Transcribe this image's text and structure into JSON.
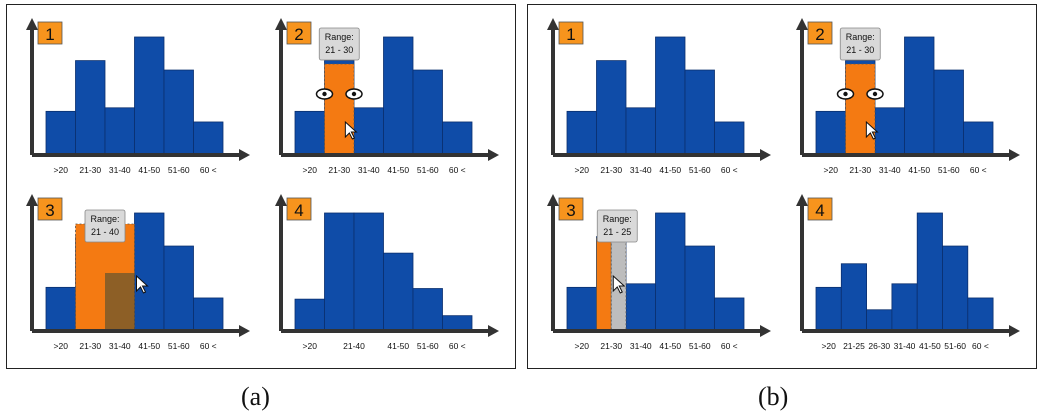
{
  "panels": [
    {
      "caption": "(a)",
      "steps": [
        {
          "number": "1",
          "bins": [
            {
              "label": ">20",
              "value": 37
            },
            {
              "label": "21-30",
              "value": 80
            },
            {
              "label": "31-40",
              "value": 40
            },
            {
              "label": "41-50",
              "value": 100
            },
            {
              "label": "51-60",
              "value": 72
            },
            {
              "label": "60 <",
              "value": 28
            }
          ]
        },
        {
          "number": "2",
          "bins": [
            {
              "label": ">20",
              "value": 37
            },
            {
              "label": "21-30",
              "value": 80
            },
            {
              "label": "31-40",
              "value": 40
            },
            {
              "label": "41-50",
              "value": 100
            },
            {
              "label": "51-60",
              "value": 72
            },
            {
              "label": "60 <",
              "value": 28
            }
          ],
          "tooltip_title": "Range:",
          "tooltip_range": "21 - 30",
          "highlight": [
            1,
            2
          ],
          "handles": true,
          "cursor": true
        },
        {
          "number": "3",
          "bins": [
            {
              "label": ">20",
              "value": 37
            },
            {
              "label": "21-30",
              "value": 80
            },
            {
              "label": "31-40",
              "value": 40
            },
            {
              "label": "41-50",
              "value": 100
            },
            {
              "label": "51-60",
              "value": 72
            },
            {
              "label": "60 <",
              "value": 28
            }
          ],
          "tooltip_title": "Range:",
          "tooltip_range": "21 - 40",
          "highlight": [
            1,
            3
          ],
          "overlay_bin": 2,
          "cursor": true
        },
        {
          "number": "4",
          "bins": [
            {
              "label": ">20",
              "value": 27
            },
            {
              "label": "21-40",
              "value": 100
            },
            {
              "label": "",
              "value": 100
            },
            {
              "label": "41-50",
              "value": 66
            },
            {
              "label": "51-60",
              "value": 36
            },
            {
              "label": "60 <",
              "value": 13
            }
          ]
        }
      ]
    },
    {
      "caption": "(b)",
      "steps": [
        {
          "number": "1",
          "bins": [
            {
              "label": ">20",
              "value": 37
            },
            {
              "label": "21-30",
              "value": 80
            },
            {
              "label": "31-40",
              "value": 40
            },
            {
              "label": "41-50",
              "value": 100
            },
            {
              "label": "51-60",
              "value": 72
            },
            {
              "label": "60 <",
              "value": 28
            }
          ]
        },
        {
          "number": "2",
          "bins": [
            {
              "label": ">20",
              "value": 37
            },
            {
              "label": "21-30",
              "value": 80
            },
            {
              "label": "31-40",
              "value": 40
            },
            {
              "label": "41-50",
              "value": 100
            },
            {
              "label": "51-60",
              "value": 72
            },
            {
              "label": "60 <",
              "value": 28
            }
          ],
          "tooltip_title": "Range:",
          "tooltip_range": "21 - 30",
          "highlight": [
            1,
            2
          ],
          "handles": true,
          "cursor": true
        },
        {
          "number": "3",
          "bins": [
            {
              "label": ">20",
              "value": 37
            },
            {
              "label": "21-30",
              "value": 80
            },
            {
              "label": "31-40",
              "value": 40
            },
            {
              "label": "41-50",
              "value": 100
            },
            {
              "label": "51-60",
              "value": 72
            },
            {
              "label": "60 <",
              "value": 28
            }
          ],
          "tooltip_title": "Range:",
          "tooltip_range": "21 - 25",
          "split_bin": 1,
          "cursor": true
        },
        {
          "number": "4",
          "bins": [
            {
              "label": ">20",
              "value": 37
            },
            {
              "label": "21-25",
              "value": 57
            },
            {
              "label": "26-30",
              "value": 18
            },
            {
              "label": "31-40",
              "value": 40
            },
            {
              "label": "41-50",
              "value": 100
            },
            {
              "label": "51-60",
              "value": 72
            },
            {
              "label": "60 <",
              "value": 28
            }
          ]
        }
      ]
    }
  ],
  "colors": {
    "bar": "#0f4ca8",
    "bar_edge": "#0a2f6e",
    "highlight": "#f47a12",
    "overlay": "#7a5a2a",
    "badge": "#f7941d",
    "axis": "#333333",
    "tooltip": "#d9d9d9"
  }
}
